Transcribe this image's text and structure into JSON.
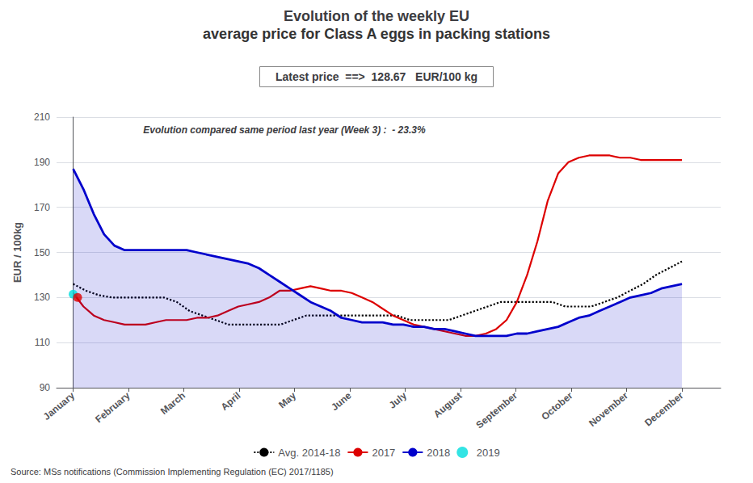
{
  "chart_data": {
    "type": "line",
    "title": "Evolution of the weekly EU",
    "subtitle": "average price for Class A eggs in packing stations",
    "ylabel": "EUR / 100kg",
    "annotations": [
      "Latest price  ==>  128.67   EUR/100 kg",
      "Evolution compared same period last year (Week 3) :  - 23.3%",
      "Source: MSs notifications (Commission Implementing Regulation (EC) 2017/1185)"
    ],
    "xlim": [
      -0.3,
      11.7
    ],
    "xticks": [
      {
        "value": 0,
        "label": "January"
      },
      {
        "value": 1,
        "label": "February"
      },
      {
        "value": 2,
        "label": "March"
      },
      {
        "value": 3,
        "label": "April"
      },
      {
        "value": 4,
        "label": "May"
      },
      {
        "value": 5,
        "label": "June"
      },
      {
        "value": 6,
        "label": "July"
      },
      {
        "value": 7,
        "label": "August"
      },
      {
        "value": 8,
        "label": "September"
      },
      {
        "value": 9,
        "label": "October"
      },
      {
        "value": 10,
        "label": "November"
      },
      {
        "value": 11,
        "label": "December"
      }
    ],
    "ylim": [
      90,
      210
    ],
    "yticks": [
      90,
      110,
      130,
      150,
      170,
      190,
      210
    ],
    "grid": true,
    "legend": "bottom",
    "series": [
      {
        "name": "Avg. 2014-18",
        "type": "line",
        "color": "#000000",
        "line_style": "dotted",
        "x": [
          0,
          0.234,
          0.468,
          0.702,
          0.936,
          1.17,
          1.404,
          1.638,
          1.872,
          2.106,
          2.34,
          2.574,
          2.809,
          3.043,
          3.277,
          3.511,
          3.745,
          3.979,
          4.213,
          4.447,
          4.681,
          4.915,
          5.149,
          5.383,
          5.617,
          5.851,
          6.085,
          6.319,
          6.553,
          6.787,
          7.021,
          7.255,
          7.489,
          7.723,
          7.957,
          8.191,
          8.426,
          8.66,
          8.894,
          9.128,
          9.362,
          9.596,
          9.83,
          10.064,
          10.298,
          10.532,
          10.766,
          11
        ],
        "values": [
          136,
          133,
          131,
          130,
          130,
          130,
          130,
          130,
          128,
          124,
          122,
          120,
          118,
          118,
          118,
          118,
          118,
          120,
          122,
          122,
          122,
          122,
          122,
          122,
          122,
          122,
          120,
          120,
          120,
          120,
          122,
          124,
          126,
          128,
          128,
          128,
          128,
          128,
          126,
          126,
          126,
          128,
          130,
          133,
          136,
          140,
          143,
          146
        ]
      },
      {
        "name": "2017",
        "type": "line",
        "color": "#dd0000",
        "line_style": "solid",
        "x": [
          0,
          0.186,
          0.373,
          0.559,
          0.746,
          0.932,
          1.119,
          1.305,
          1.492,
          1.678,
          1.864,
          2.051,
          2.237,
          2.424,
          2.61,
          2.797,
          2.983,
          3.169,
          3.356,
          3.542,
          3.729,
          3.915,
          4.102,
          4.288,
          4.475,
          4.661,
          4.847,
          5.034,
          5.22,
          5.407,
          5.593,
          5.78,
          5.966,
          6.153,
          6.339,
          6.525,
          6.712,
          6.898,
          7.085,
          7.271,
          7.458,
          7.644,
          7.831,
          8.017,
          8.203,
          8.39,
          8.576,
          8.763,
          8.949,
          9.136,
          9.322,
          9.508,
          9.695,
          9.881,
          10.068,
          10.254,
          10.441,
          10.627,
          10.814,
          11
        ],
        "values": [
          132,
          126,
          122,
          120,
          119,
          118,
          118,
          118,
          119,
          120,
          120,
          120,
          121,
          121,
          122,
          124,
          126,
          127,
          128,
          130,
          133,
          133,
          134,
          135,
          134,
          133,
          133,
          132,
          130,
          128,
          125,
          122,
          120,
          118,
          117,
          116,
          115,
          114,
          113,
          113,
          114,
          116,
          120,
          128,
          140,
          155,
          173,
          185,
          190,
          192,
          193,
          193,
          193,
          192,
          192,
          191,
          191,
          191,
          191,
          191
        ]
      },
      {
        "name": "2018",
        "type": "area",
        "color": "#0000cc",
        "line_style": "solid",
        "x": [
          0,
          0.186,
          0.373,
          0.559,
          0.746,
          0.932,
          1.119,
          1.305,
          1.492,
          1.678,
          1.864,
          2.051,
          2.237,
          2.424,
          2.61,
          2.797,
          2.983,
          3.169,
          3.356,
          3.542,
          3.729,
          3.915,
          4.102,
          4.288,
          4.475,
          4.661,
          4.847,
          5.034,
          5.22,
          5.407,
          5.593,
          5.78,
          5.966,
          6.153,
          6.339,
          6.525,
          6.712,
          6.898,
          7.085,
          7.271,
          7.458,
          7.644,
          7.831,
          8.017,
          8.203,
          8.39,
          8.576,
          8.763,
          8.949,
          9.136,
          9.322,
          9.508,
          9.695,
          9.881,
          10.068,
          10.254,
          10.441,
          10.627,
          10.814,
          11
        ],
        "values": [
          187,
          178,
          167,
          158,
          153,
          151,
          151,
          151,
          151,
          151,
          151,
          151,
          150,
          149,
          148,
          147,
          146,
          145,
          143,
          140,
          137,
          134,
          131,
          128,
          126,
          124,
          121,
          120,
          119,
          119,
          119,
          118,
          118,
          117,
          117,
          116,
          116,
          115,
          114,
          113,
          113,
          113,
          113,
          114,
          114,
          115,
          116,
          117,
          119,
          121,
          122,
          124,
          126,
          128,
          130,
          131,
          132,
          134,
          135,
          136
        ]
      },
      {
        "name": "2019",
        "type": "scatter",
        "marker": "circle",
        "colors": [
          "#00dddd",
          "#dd0000"
        ],
        "x": [
          0.0,
          0.08
        ],
        "values": [
          131.5,
          130.0
        ]
      }
    ]
  }
}
